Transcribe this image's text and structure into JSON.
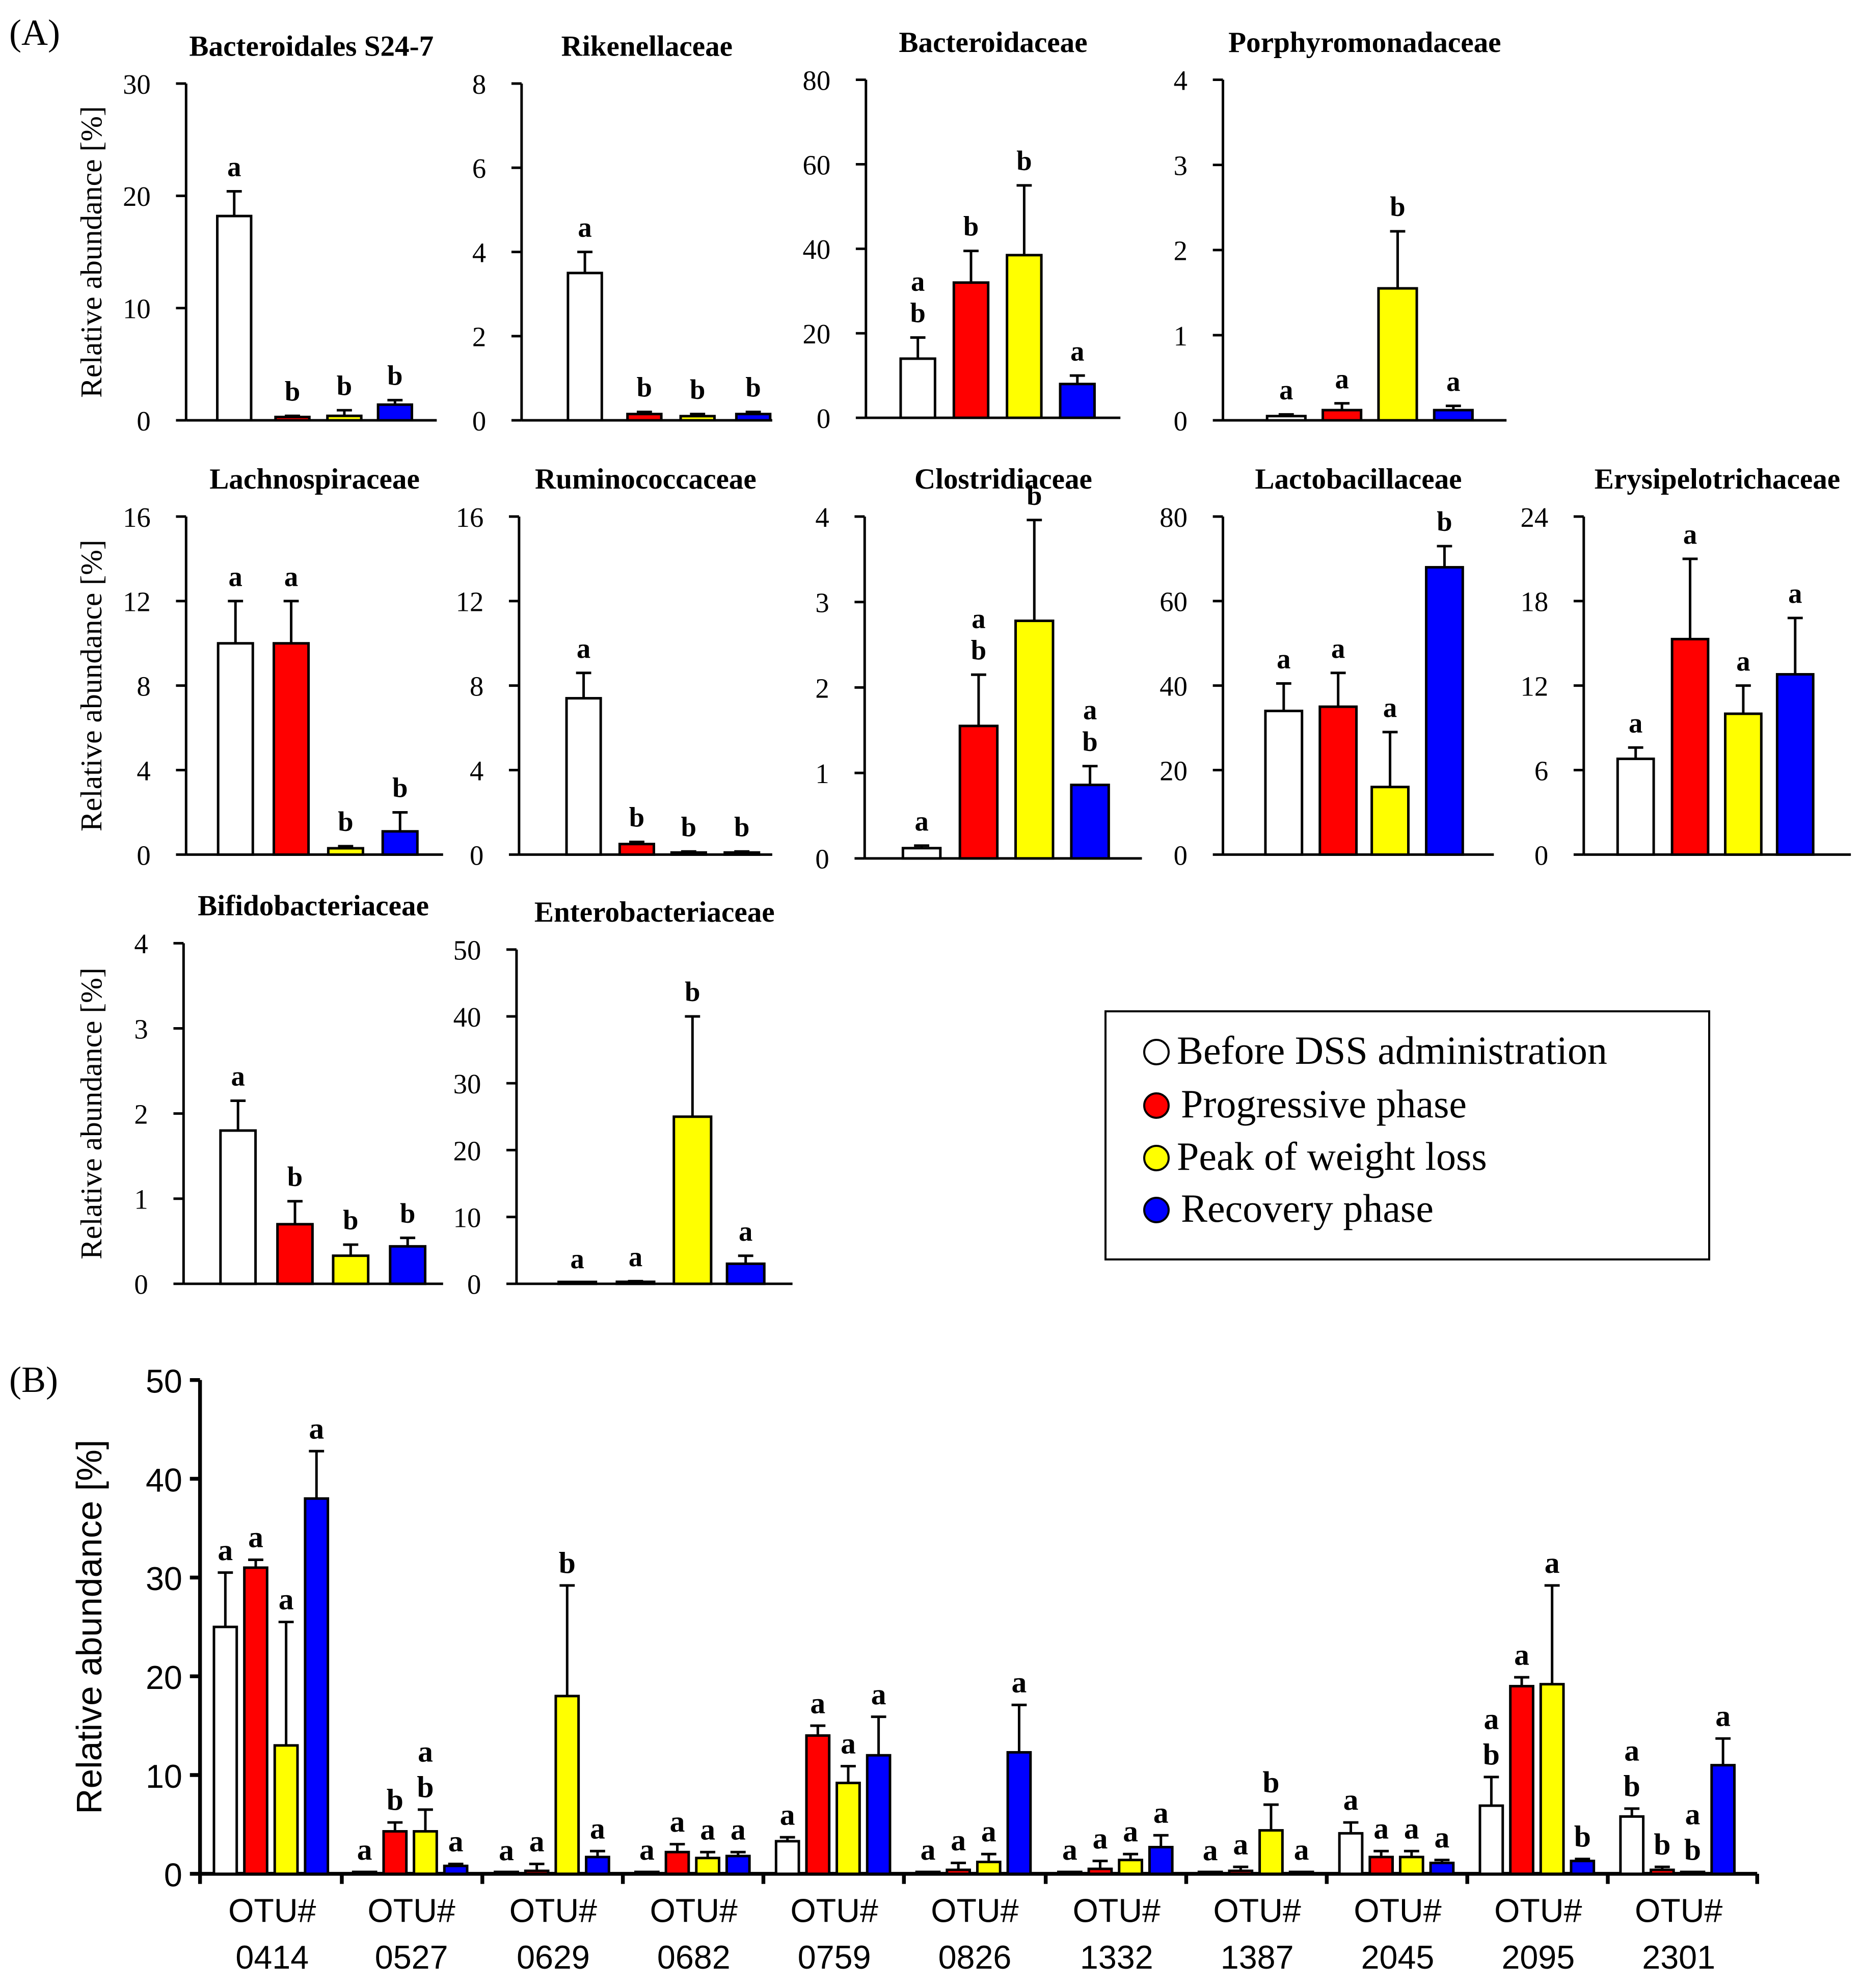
{
  "panel_labels": {
    "a": "(A)",
    "b": "(B)"
  },
  "colors": {
    "before": "#ffffff",
    "progressive": "#ff0000",
    "peak": "#ffff00",
    "recovery": "#0000ff",
    "axis": "#000000"
  },
  "legend": {
    "entries": [
      {
        "label": "Before DSS administration",
        "color": "#ffffff"
      },
      {
        "label": "Progressive phase",
        "color": "#ff0000"
      },
      {
        "label": "Peak of weight loss",
        "color": "#ffff00"
      },
      {
        "label": "Recovery phase",
        "color": "#0000ff"
      }
    ]
  },
  "chart_data": [
    {
      "type": "bar",
      "panel": "A",
      "title": "Bacteroidales S24-7",
      "ylabel": "Relative abundance [%]",
      "ylim": [
        0,
        30
      ],
      "ticks": [
        "0",
        "10",
        "20",
        "30"
      ],
      "series": [
        "Before DSS administration",
        "Progressive phase",
        "Peak of weight loss",
        "Recovery phase"
      ],
      "values": [
        18.2,
        0.3,
        0.4,
        1.4
      ],
      "errors": [
        2.2,
        0.1,
        0.5,
        0.4
      ],
      "letters": [
        [
          "a"
        ],
        [
          "b"
        ],
        [
          "b"
        ],
        [
          "b"
        ]
      ]
    },
    {
      "type": "bar",
      "panel": "A",
      "title": "Rikenellaceae",
      "ylabel": "",
      "ylim": [
        0,
        8
      ],
      "ticks": [
        "0",
        "2",
        "4",
        "6",
        "8"
      ],
      "series": [
        "Before DSS administration",
        "Progressive phase",
        "Peak of weight loss",
        "Recovery phase"
      ],
      "values": [
        3.5,
        0.15,
        0.1,
        0.15
      ],
      "errors": [
        0.5,
        0.05,
        0.05,
        0.05
      ],
      "letters": [
        [
          "a"
        ],
        [
          "b"
        ],
        [
          "b"
        ],
        [
          "b"
        ]
      ]
    },
    {
      "type": "bar",
      "panel": "A",
      "title": "Bacteroidaceae",
      "ylabel": "",
      "ylim": [
        0,
        80
      ],
      "ticks": [
        "0",
        "20",
        "40",
        "60",
        "80"
      ],
      "series": [
        "Before DSS administration",
        "Progressive phase",
        "Peak of weight loss",
        "Recovery phase"
      ],
      "values": [
        14,
        32,
        38.5,
        8
      ],
      "errors": [
        5,
        7.5,
        16.5,
        2
      ],
      "letters": [
        [
          "a",
          "b"
        ],
        [
          "b"
        ],
        [
          "b"
        ],
        [
          "a"
        ]
      ]
    },
    {
      "type": "bar",
      "panel": "A",
      "title": "Porphyromonadaceae",
      "ylabel": "",
      "ylim": [
        0,
        4
      ],
      "ticks": [
        "0",
        "1",
        "2",
        "3",
        "4"
      ],
      "series": [
        "Before DSS administration",
        "Progressive phase",
        "Peak of weight loss",
        "Recovery phase"
      ],
      "values": [
        0.05,
        0.12,
        1.55,
        0.12
      ],
      "errors": [
        0.02,
        0.08,
        0.67,
        0.05
      ],
      "letters": [
        [
          "a"
        ],
        [
          "a"
        ],
        [
          "b"
        ],
        [
          "a"
        ]
      ]
    },
    {
      "type": "bar",
      "panel": "A",
      "title": "Lachnospiraceae",
      "ylabel": "Relative abundance [%]",
      "ylim": [
        0,
        16
      ],
      "ticks": [
        "0",
        "4",
        "8",
        "12",
        "16"
      ],
      "series": [
        "Before DSS administration",
        "Progressive phase",
        "Peak of weight loss",
        "Recovery phase"
      ],
      "values": [
        10,
        10,
        0.3,
        1.1
      ],
      "errors": [
        2,
        2,
        0.1,
        0.9
      ],
      "letters": [
        [
          "a"
        ],
        [
          "a"
        ],
        [
          "b"
        ],
        [
          "b"
        ]
      ]
    },
    {
      "type": "bar",
      "panel": "A",
      "title": "Ruminococcaceae",
      "ylabel": "",
      "ylim": [
        0,
        16
      ],
      "ticks": [
        "0",
        "4",
        "8",
        "12",
        "16"
      ],
      "series": [
        "Before DSS administration",
        "Progressive phase",
        "Peak of weight loss",
        "Recovery phase"
      ],
      "values": [
        7.4,
        0.5,
        0.1,
        0.1
      ],
      "errors": [
        1.2,
        0.1,
        0.05,
        0.05
      ],
      "letters": [
        [
          "a"
        ],
        [
          "b"
        ],
        [
          "b"
        ],
        [
          "b"
        ]
      ]
    },
    {
      "type": "bar",
      "panel": "A",
      "title": "Clostridiaceae",
      "ylabel": "",
      "ylim": [
        0,
        4
      ],
      "ticks": [
        "0",
        "1",
        "2",
        "3",
        "4"
      ],
      "series": [
        "Before DSS administration",
        "Progressive phase",
        "Peak of weight loss",
        "Recovery phase"
      ],
      "values": [
        0.12,
        1.55,
        2.78,
        0.86
      ],
      "errors": [
        0.03,
        0.6,
        1.18,
        0.22
      ],
      "letters": [
        [
          "a"
        ],
        [
          "a",
          "b"
        ],
        [
          "b"
        ],
        [
          "a",
          "b"
        ]
      ]
    },
    {
      "type": "bar",
      "panel": "A",
      "title": "Lactobacillaceae",
      "ylabel": "",
      "ylim": [
        0,
        80
      ],
      "ticks": [
        "0",
        "20",
        "40",
        "60",
        "80"
      ],
      "series": [
        "Before DSS administration",
        "Progressive phase",
        "Peak of weight loss",
        "Recovery phase"
      ],
      "values": [
        34,
        35,
        16,
        68
      ],
      "errors": [
        6.5,
        8,
        13,
        5
      ],
      "letters": [
        [
          "a"
        ],
        [
          "a"
        ],
        [
          "a"
        ],
        [
          "b"
        ]
      ]
    },
    {
      "type": "bar",
      "panel": "A",
      "title": "Erysipelotrichaceae",
      "ylabel": "",
      "ylim": [
        0,
        24
      ],
      "ticks": [
        "0",
        "6",
        "12",
        "18",
        "24"
      ],
      "series": [
        "Before DSS administration",
        "Progressive phase",
        "Peak of weight loss",
        "Recovery phase"
      ],
      "values": [
        6.8,
        15.3,
        10,
        12.8
      ],
      "errors": [
        0.8,
        5.7,
        2,
        4
      ],
      "letters": [
        [
          "a"
        ],
        [
          "a"
        ],
        [
          "a"
        ],
        [
          "a"
        ]
      ]
    },
    {
      "type": "bar",
      "panel": "A",
      "title": "Bifidobacteriaceae",
      "ylabel": "Relative abundance [%]",
      "ylim": [
        0,
        4
      ],
      "ticks": [
        "0",
        "1",
        "2",
        "3",
        "4"
      ],
      "series": [
        "Before DSS administration",
        "Progressive phase",
        "Peak of weight loss",
        "Recovery phase"
      ],
      "values": [
        1.8,
        0.7,
        0.33,
        0.44
      ],
      "errors": [
        0.35,
        0.27,
        0.13,
        0.1
      ],
      "letters": [
        [
          "a"
        ],
        [
          "b"
        ],
        [
          "b"
        ],
        [
          "b"
        ]
      ]
    },
    {
      "type": "bar",
      "panel": "A",
      "title": "Enterobacteriaceae",
      "ylabel": "",
      "ylim": [
        0,
        50
      ],
      "ticks": [
        "0",
        "10",
        "20",
        "30",
        "40",
        "50"
      ],
      "series": [
        "Before DSS administration",
        "Progressive phase",
        "Peak of weight loss",
        "Recovery phase"
      ],
      "values": [
        0.05,
        0.3,
        25,
        3
      ],
      "errors": [
        0.02,
        0.1,
        15,
        1.2
      ],
      "letters": [
        [
          "a"
        ],
        [
          "a"
        ],
        [
          "b"
        ],
        [
          "a"
        ]
      ]
    },
    {
      "type": "bar",
      "panel": "B",
      "title": "",
      "ylabel": "Relative abundance [%]",
      "ylim": [
        0,
        50
      ],
      "ticks": [
        "0",
        "10",
        "20",
        "30",
        "40",
        "50"
      ],
      "series": [
        "Before DSS administration",
        "Progressive phase",
        "Peak of weight loss",
        "Recovery phase"
      ],
      "categories": [
        [
          "OTU#",
          "0414"
        ],
        [
          "OTU#",
          "0527"
        ],
        [
          "OTU#",
          "0629"
        ],
        [
          "OTU#",
          "0682"
        ],
        [
          "OTU#",
          "0759"
        ],
        [
          "OTU#",
          "0826"
        ],
        [
          "OTU#",
          "1332"
        ],
        [
          "OTU#",
          "1387"
        ],
        [
          "OTU#",
          "2045"
        ],
        [
          "OTU#",
          "2095"
        ],
        [
          "OTU#",
          "2301"
        ]
      ],
      "groups": [
        {
          "values": [
            25,
            31,
            13,
            38
          ],
          "errors": [
            5.5,
            0.8,
            12.5,
            4.8
          ],
          "letters": [
            [
              "a"
            ],
            [
              "a"
            ],
            [
              "a"
            ],
            [
              "a"
            ]
          ]
        },
        {
          "values": [
            0.1,
            4.3,
            4.3,
            0.8
          ],
          "errors": [
            0.05,
            0.9,
            2.2,
            0.2
          ],
          "letters": [
            [
              "a"
            ],
            [
              "b"
            ],
            [
              "a",
              "b"
            ],
            [
              "a"
            ]
          ]
        },
        {
          "values": [
            0.05,
            0.3,
            18,
            1.7
          ],
          "errors": [
            0.05,
            0.7,
            11.2,
            0.6
          ],
          "letters": [
            [
              "a"
            ],
            [
              "a"
            ],
            [
              "b"
            ],
            [
              "a"
            ]
          ]
        },
        {
          "values": [
            0.1,
            2.2,
            1.6,
            1.8
          ],
          "errors": [
            0.05,
            0.8,
            0.6,
            0.4
          ],
          "letters": [
            [
              "a"
            ],
            [
              "a"
            ],
            [
              "a"
            ],
            [
              "a"
            ]
          ]
        },
        {
          "values": [
            3.3,
            14,
            9.2,
            12
          ],
          "errors": [
            0.4,
            1,
            1.7,
            3.9
          ],
          "letters": [
            [
              "a"
            ],
            [
              "a"
            ],
            [
              "a"
            ],
            [
              "a"
            ]
          ]
        },
        {
          "values": [
            0.1,
            0.4,
            1.2,
            12.3
          ],
          "errors": [
            0.05,
            0.7,
            0.8,
            4.8
          ],
          "letters": [
            [
              "a"
            ],
            [
              "a"
            ],
            [
              "a"
            ],
            [
              "a"
            ]
          ]
        },
        {
          "values": [
            0.1,
            0.5,
            1.4,
            2.7
          ],
          "errors": [
            0.05,
            0.8,
            0.6,
            1.2
          ],
          "letters": [
            [
              "a"
            ],
            [
              "a"
            ],
            [
              "a"
            ],
            [
              "a"
            ]
          ]
        },
        {
          "values": [
            0.05,
            0.3,
            4.4,
            0.1
          ],
          "errors": [
            0.05,
            0.4,
            2.6,
            0.05
          ],
          "letters": [
            [
              "a"
            ],
            [
              "a"
            ],
            [
              "b"
            ],
            [
              "a"
            ]
          ]
        },
        {
          "values": [
            4.1,
            1.7,
            1.7,
            1.1
          ],
          "errors": [
            1.1,
            0.6,
            0.6,
            0.3
          ],
          "letters": [
            [
              "a"
            ],
            [
              "a"
            ],
            [
              "a"
            ],
            [
              "a"
            ]
          ]
        },
        {
          "values": [
            6.9,
            19,
            19.2,
            1.3
          ],
          "errors": [
            2.9,
            0.9,
            10,
            0.2
          ],
          "letters": [
            [
              "a",
              "b"
            ],
            [
              "a"
            ],
            [
              "a"
            ],
            [
              "b"
            ]
          ]
        },
        {
          "values": [
            5.8,
            0.4,
            0.1,
            11
          ],
          "errors": [
            0.8,
            0.3,
            0.05,
            2.7
          ],
          "letters": [
            [
              "a",
              "b"
            ],
            [
              "b"
            ],
            [
              "a",
              "b"
            ],
            [
              "a"
            ]
          ]
        }
      ]
    }
  ]
}
